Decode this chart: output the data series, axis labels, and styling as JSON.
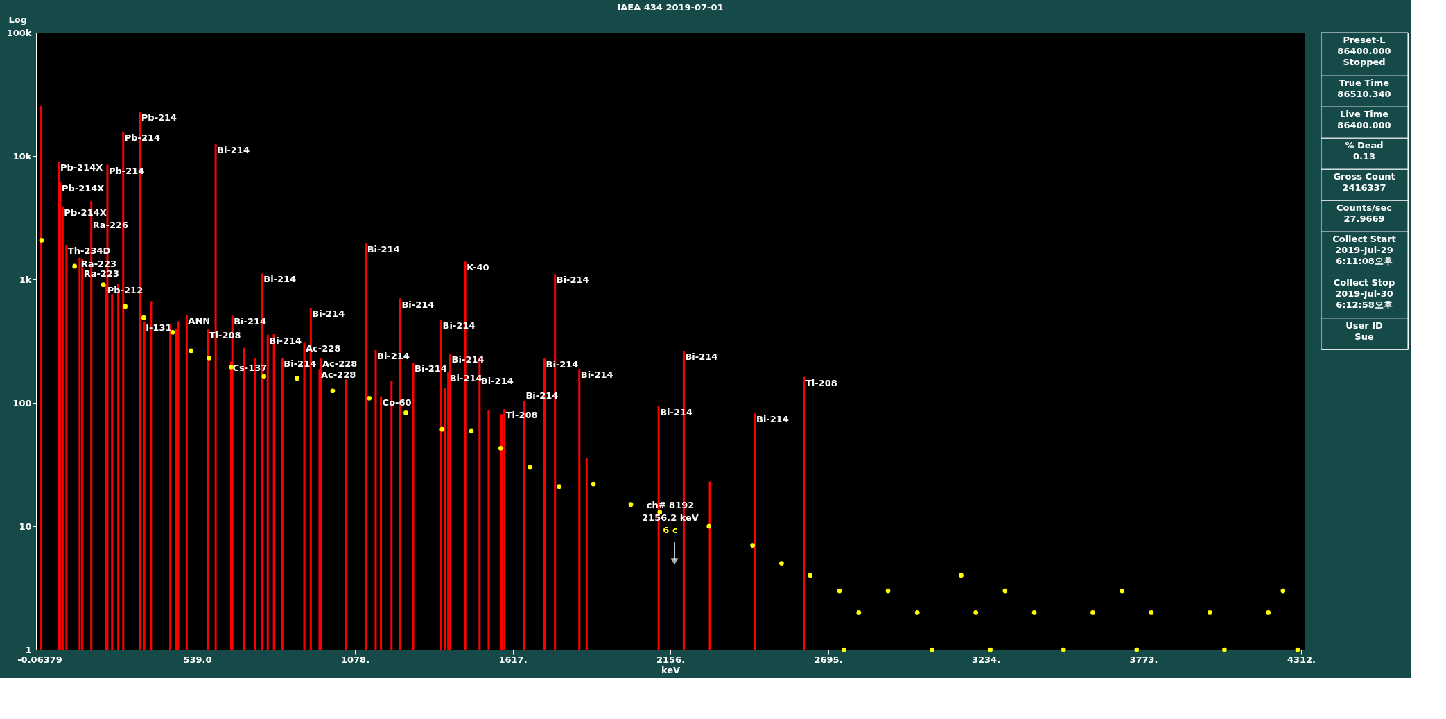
{
  "chart_data": [
    {
      "type": "bar",
      "title": "IAEA 434 2019-07-01",
      "xlabel": "keV",
      "ylabel": "Log",
      "xlim": [
        -0.06379,
        4312
      ],
      "xticks": [
        -0.06379,
        {
          "value": 539,
          "label": "539.0"
        },
        {
          "value": 1078,
          "label": "1078."
        },
        {
          "value": 1617,
          "label": "1617."
        },
        {
          "value": 2156,
          "label": "2156."
        },
        {
          "value": 2695,
          "label": "2695."
        },
        {
          "value": 3234,
          "label": "3234."
        },
        {
          "value": 3773,
          "label": "3773."
        },
        {
          "value": 4312,
          "label": "4312."
        }
      ],
      "ylim": [
        1,
        100000
      ],
      "yticks": [
        1,
        10,
        100,
        {
          "value": 1000,
          "label": "1k"
        },
        {
          "value": 10000,
          "label": "10k"
        },
        {
          "value": 100000,
          "label": "100k"
        }
      ],
      "log": "y",
      "grid": false,
      "series": [
        {
          "type": "bar",
          "color": "#ff0000",
          "x": [
            6,
            66,
            71,
            79,
            92,
            137,
            146,
            177,
            227,
            232,
            248,
            269,
            286,
            343,
            358,
            381,
            447,
            468,
            474,
            503,
            575,
            602,
            655,
            659,
            699,
            736,
            761,
            780,
            801,
            830,
            905,
            927,
            957,
            962,
            1046,
            1115,
            1149,
            1167,
            1203,
            1233,
            1277,
            1373,
            1385,
            1397,
            1404,
            1455,
            1504,
            1535,
            1579,
            1589,
            1657,
            1726,
            1762,
            1845,
            1870,
            2116,
            2202,
            2291,
            2445,
            2613
          ],
          "values": [
            25500,
            9000,
            6100,
            3900,
            1900,
            1500,
            1470,
            4300,
            910,
            8500,
            760,
            920,
            15800,
            22900,
            457,
            667,
            428,
            397,
            457,
            517,
            393,
            12400,
            215,
            508,
            279,
            231,
            1117,
            356,
            360,
            231,
            310,
            589,
            188,
            231,
            154,
            1950,
            268,
            113,
            150,
            700,
            212,
            472,
            133,
            176,
            250,
            1394,
            234,
            87,
            81,
            89,
            103,
            228,
            1105,
            188,
            36,
            94,
            264,
            23,
            82,
            162
          ]
        },
        {
          "type": "scatter",
          "color": "#ffff00",
          "marker": "circle",
          "x": [
            7,
            120,
            218,
            293,
            356,
            455,
            518,
            580,
            655,
            767,
            880,
            1002,
            1127,
            1252,
            1376,
            1476,
            1576,
            1676,
            1776,
            1893,
            2021,
            2120,
            2288,
            2437,
            2536,
            2634,
            2734,
            2750,
            2800,
            2900,
            3000,
            3050,
            3150,
            3200,
            3250,
            3300,
            3400,
            3500,
            3600,
            3700,
            3750,
            3800,
            4000,
            4050,
            4200,
            4250,
            4300
          ],
          "values": [
            2080,
            1280,
            906,
            604,
            490,
            373,
            264,
            231,
            195,
            164,
            158,
            125,
            109,
            83,
            61,
            59,
            43,
            30,
            21,
            22,
            15,
            13,
            10,
            7,
            5,
            4,
            3,
            1,
            2,
            3,
            2,
            1,
            4,
            2,
            1,
            3,
            2,
            1,
            2,
            3,
            1,
            2,
            2,
            1,
            2,
            3,
            1
          ]
        }
      ],
      "annotations": [
        {
          "text": "Pb-214X",
          "x": 66,
          "y": 9000
        },
        {
          "text": "Pb-214X",
          "x": 71,
          "y": 6100
        },
        {
          "text": "Pb-214X",
          "x": 79,
          "y": 3900
        },
        {
          "text": "Th-234D",
          "x": 92,
          "y": 1900
        },
        {
          "text": "Ra-223",
          "x": 137,
          "y": 1500
        },
        {
          "text": "Ra-223",
          "x": 146,
          "y": 1470
        },
        {
          "text": "Ra-226",
          "x": 177,
          "y": 4300
        },
        {
          "text": "Pb-212",
          "x": 227,
          "y": 910
        },
        {
          "text": "Pb-214",
          "x": 232,
          "y": 8500
        },
        {
          "text": "Pb-214",
          "x": 286,
          "y": 15800
        },
        {
          "text": "Pb-214",
          "x": 343,
          "y": 22900
        },
        {
          "text": "I-131",
          "x": 358,
          "y": 457
        },
        {
          "text": "ANN",
          "x": 503,
          "y": 517
        },
        {
          "text": "Tl-208",
          "x": 575,
          "y": 393
        },
        {
          "text": "Bi-214",
          "x": 602,
          "y": 12400
        },
        {
          "text": "Cs-137",
          "x": 655,
          "y": 215
        },
        {
          "text": "Bi-214",
          "x": 659,
          "y": 508
        },
        {
          "text": "Bi-214",
          "x": 761,
          "y": 1117
        },
        {
          "text": "Bi-214",
          "x": 780,
          "y": 356
        },
        {
          "text": "Bi-214",
          "x": 830,
          "y": 231
        },
        {
          "text": "Ac-228",
          "x": 905,
          "y": 310
        },
        {
          "text": "Bi-214",
          "x": 927,
          "y": 589
        },
        {
          "text": "Ac-228",
          "x": 957,
          "y": 188
        },
        {
          "text": "Ac-228",
          "x": 962,
          "y": 231
        },
        {
          "text": "Bi-214",
          "x": 1115,
          "y": 1950
        },
        {
          "text": "Bi-214",
          "x": 1149,
          "y": 268
        },
        {
          "text": "Co-60",
          "x": 1167,
          "y": 113
        },
        {
          "text": "Bi-214",
          "x": 1233,
          "y": 700
        },
        {
          "text": "Bi-214",
          "x": 1277,
          "y": 212
        },
        {
          "text": "Bi-214",
          "x": 1373,
          "y": 472
        },
        {
          "text": "Bi-214",
          "x": 1397,
          "y": 176
        },
        {
          "text": "Bi-214",
          "x": 1404,
          "y": 250
        },
        {
          "text": "K-40",
          "x": 1455,
          "y": 1394
        },
        {
          "text": "Bi-214",
          "x": 1504,
          "y": 234
        },
        {
          "text": "Tl-208",
          "x": 1589,
          "y": 89
        },
        {
          "text": "Bi-214",
          "x": 1657,
          "y": 103
        },
        {
          "text": "Bi-214",
          "x": 1726,
          "y": 228
        },
        {
          "text": "Bi-214",
          "x": 1762,
          "y": 1105
        },
        {
          "text": "Bi-214",
          "x": 1845,
          "y": 188
        },
        {
          "text": "Bi-214",
          "x": 2116,
          "y": 94
        },
        {
          "text": "Bi-214",
          "x": 2202,
          "y": 264
        },
        {
          "text": "Bi-214",
          "x": 2445,
          "y": 82
        },
        {
          "text": "Tl-208",
          "x": 2613,
          "y": 162
        },
        "ch# 8192",
        "2156.2 keV",
        "6 c"
      ]
    },
    {
      "type": "other",
      "annotations": [
        "Preset-L\n86400.000\nStopped",
        "True Time\n86510.340",
        "Live Time\n86400.000",
        "% Dead\n0.13",
        "Gross Count\n2416337",
        "Counts/sec\n27.9669",
        "Collect Start\n2019-Jul-29\n6:11:08오후",
        "Collect Stop\n2019-Jul-30\n6:12:58오후",
        "User ID\nSue"
      ]
    }
  ]
}
